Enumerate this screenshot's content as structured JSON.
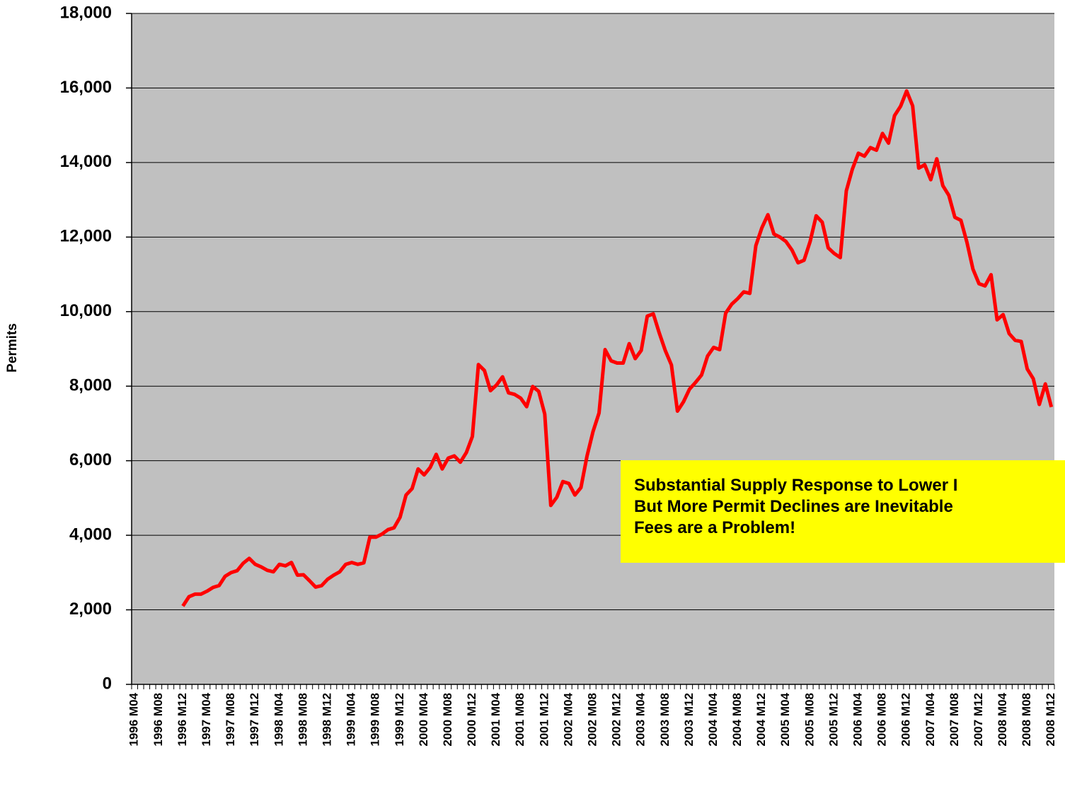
{
  "chart_data": {
    "type": "line",
    "y_label": "Permits",
    "annotation": [
      "Substantial Supply Response to Lower I",
      "But More Permit  Declines are Inevitable",
      "Fees are a Problem!"
    ],
    "categories": [
      "1996 M04",
      null,
      null,
      null,
      "1996 M08",
      null,
      null,
      null,
      "1996 M12",
      null,
      null,
      null,
      "1997 M04",
      null,
      null,
      null,
      "1997 M08",
      null,
      null,
      null,
      "1997 M12",
      null,
      null,
      null,
      "1998 M04",
      null,
      null,
      null,
      "1998 M08",
      null,
      null,
      null,
      "1998 M12",
      null,
      null,
      null,
      "1999 M04",
      null,
      null,
      null,
      "1999 M08",
      null,
      null,
      null,
      "1999 M12",
      null,
      null,
      null,
      "2000 M04",
      null,
      null,
      null,
      "2000 M08",
      null,
      null,
      null,
      "2000 M12",
      null,
      null,
      null,
      "2001 M04",
      null,
      null,
      null,
      "2001 M08",
      null,
      null,
      null,
      "2001 M12",
      null,
      null,
      null,
      "2002 M04",
      null,
      null,
      null,
      "2002 M08",
      null,
      null,
      null,
      "2002 M12",
      null,
      null,
      null,
      "2003 M04",
      null,
      null,
      null,
      "2003 M08",
      null,
      null,
      null,
      "2003 M12",
      null,
      null,
      null,
      "2004 M04",
      null,
      null,
      null,
      "2004 M08",
      null,
      null,
      null,
      "2004 M12",
      null,
      null,
      null,
      "2005 M04",
      null,
      null,
      null,
      "2005 M08",
      null,
      null,
      null,
      "2005 M12",
      null,
      null,
      null,
      "2006 M04",
      null,
      null,
      null,
      "2006 M08",
      null,
      null,
      null,
      "2006 M12",
      null,
      null,
      null,
      "2007 M04",
      null,
      null,
      null,
      "2007 M08",
      null,
      null,
      null,
      "2007 M12",
      null,
      null,
      null,
      "2008 M04",
      null,
      null,
      null,
      "2008 M08",
      null,
      null,
      null,
      "2008 M12"
    ],
    "series": [
      {
        "name": "Permits",
        "color": "#ff0000",
        "values": [
          null,
          null,
          null,
          null,
          null,
          null,
          null,
          null,
          2100,
          2350,
          2420,
          2420,
          2500,
          2600,
          2650,
          2900,
          3000,
          3050,
          3250,
          3380,
          3220,
          3150,
          3060,
          3020,
          3220,
          3180,
          3270,
          2930,
          2940,
          2780,
          2610,
          2650,
          2820,
          2930,
          3020,
          3220,
          3270,
          3220,
          3260,
          3950,
          3950,
          4030,
          4150,
          4200,
          4480,
          5080,
          5250,
          5780,
          5620,
          5820,
          6170,
          5780,
          6070,
          6130,
          5960,
          6220,
          6650,
          8580,
          8420,
          7880,
          8030,
          8250,
          7820,
          7780,
          7680,
          7450,
          7990,
          7860,
          7250,
          4800,
          5020,
          5440,
          5390,
          5080,
          5280,
          6120,
          6780,
          7280,
          8980,
          8680,
          8620,
          8620,
          9140,
          8740,
          8960,
          9880,
          9940,
          9420,
          8950,
          8570,
          7330,
          7580,
          7920,
          8100,
          8300,
          8810,
          9040,
          8980,
          9960,
          10200,
          10350,
          10530,
          10490,
          11770,
          12250,
          12600,
          12080,
          12000,
          11880,
          11650,
          11310,
          11380,
          11880,
          12570,
          12400,
          11710,
          11560,
          11450,
          13240,
          13820,
          14250,
          14170,
          14400,
          14330,
          14780,
          14520,
          15260,
          15510,
          15920,
          15520,
          13850,
          13940,
          13540,
          14100,
          13380,
          13120,
          12530,
          12450,
          11860,
          11140,
          10750,
          10690,
          10990,
          9780,
          9920,
          9410,
          9230,
          9200,
          8460,
          8200,
          7510,
          8060,
          7440
        ]
      }
    ],
    "ylim": [
      0,
      18000
    ],
    "yticks": [
      {
        "value": 0,
        "label": "0"
      },
      {
        "value": 2000,
        "label": "2,000"
      },
      {
        "value": 4000,
        "label": "4,000"
      },
      {
        "value": 6000,
        "label": "6,000"
      },
      {
        "value": 8000,
        "label": "8,000"
      },
      {
        "value": 10000,
        "label": "10,000"
      },
      {
        "value": 12000,
        "label": "12,000"
      },
      {
        "value": 14000,
        "label": "14,000"
      },
      {
        "value": 16000,
        "label": "16,000"
      },
      {
        "value": 18000,
        "label": "18,000"
      }
    ],
    "grid": true,
    "background": "#c0c0c0"
  }
}
